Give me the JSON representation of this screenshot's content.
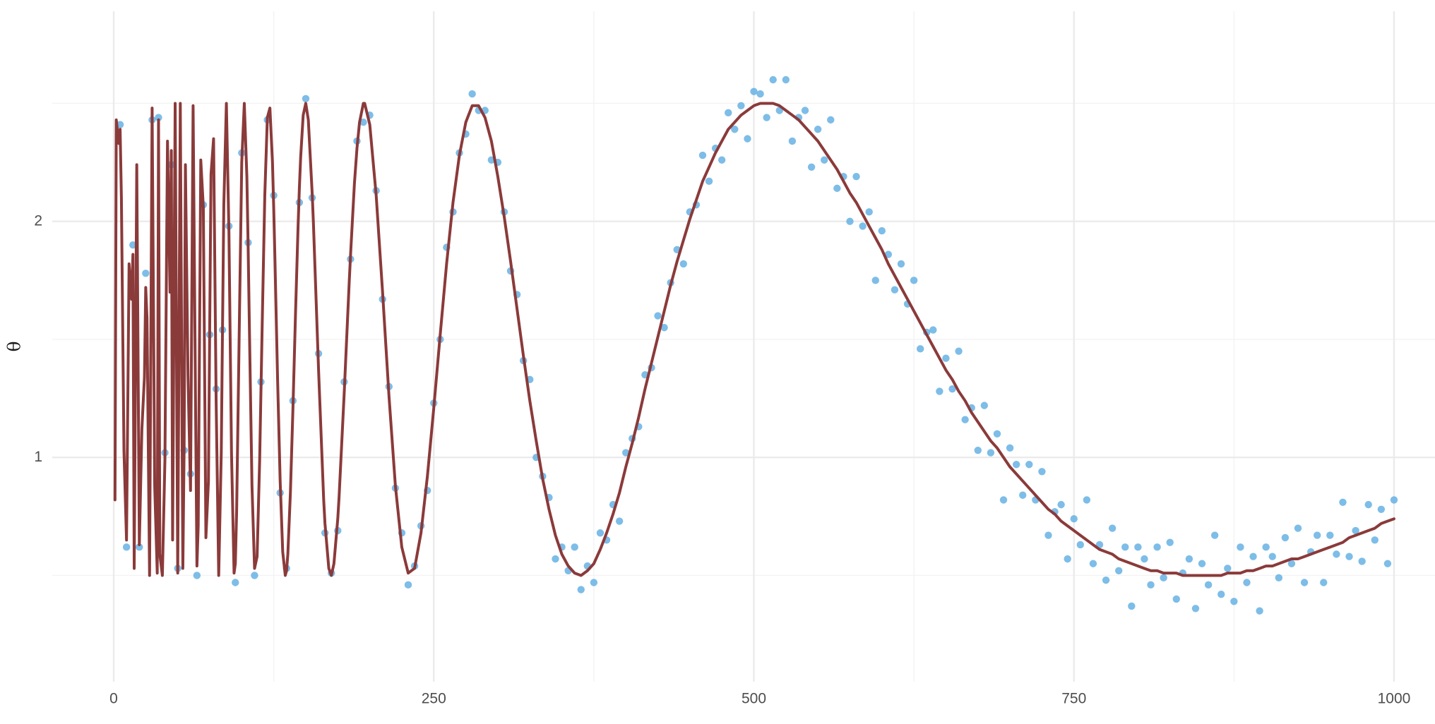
{
  "chart_data": {
    "type": "combo",
    "y_label": "θ",
    "xlim": [
      -48,
      1032
    ],
    "ylim": [
      0.05,
      2.89
    ],
    "xticks": [
      0,
      250,
      500,
      750,
      1000
    ],
    "xminor": [
      125,
      375,
      625,
      875
    ],
    "yticks": [
      1,
      2
    ],
    "yminor": [
      0.5,
      1.5,
      2.5
    ],
    "grid": true,
    "series": [
      {
        "type": "scatter",
        "color": "#5DADE2",
        "x": [
          5,
          10,
          15,
          20,
          25,
          30,
          35,
          40,
          45,
          50,
          55,
          60,
          65,
          70,
          75,
          80,
          85,
          90,
          95,
          100,
          105,
          110,
          115,
          120,
          125,
          130,
          135,
          140,
          145,
          150,
          155,
          160,
          165,
          170,
          175,
          180,
          185,
          190,
          195,
          200,
          205,
          210,
          215,
          220,
          225,
          230,
          235,
          240,
          245,
          250,
          255,
          260,
          265,
          270,
          275,
          280,
          285,
          290,
          295,
          300,
          305,
          310,
          315,
          320,
          325,
          330,
          335,
          340,
          345,
          350,
          355,
          360,
          365,
          370,
          375,
          380,
          385,
          390,
          395,
          400,
          405,
          410,
          415,
          420,
          425,
          430,
          435,
          440,
          445,
          450,
          455,
          460,
          465,
          470,
          475,
          480,
          485,
          490,
          495,
          500,
          505,
          510,
          515,
          520,
          525,
          530,
          535,
          540,
          545,
          550,
          555,
          560,
          565,
          570,
          575,
          580,
          585,
          590,
          595,
          600,
          605,
          610,
          615,
          620,
          625,
          630,
          635,
          640,
          645,
          650,
          655,
          660,
          665,
          670,
          675,
          680,
          685,
          690,
          695,
          700,
          705,
          710,
          715,
          720,
          725,
          730,
          735,
          740,
          745,
          750,
          755,
          760,
          765,
          770,
          775,
          780,
          785,
          790,
          795,
          800,
          805,
          810,
          815,
          820,
          825,
          830,
          835,
          840,
          845,
          850,
          855,
          860,
          865,
          870,
          875,
          880,
          885,
          890,
          895,
          900,
          905,
          910,
          915,
          920,
          925,
          930,
          935,
          940,
          945,
          950,
          955,
          960,
          965,
          970,
          975,
          980,
          985,
          990,
          995,
          1000
        ],
        "values": [
          2.41,
          0.62,
          1.9,
          0.62,
          1.78,
          2.43,
          2.44,
          1.02,
          2.24,
          0.53,
          1.03,
          0.93,
          0.5,
          2.07,
          1.52,
          1.29,
          1.54,
          1.98,
          0.47,
          2.29,
          1.91,
          0.5,
          1.32,
          2.43,
          2.11,
          0.85,
          0.53,
          1.24,
          2.08,
          2.52,
          2.1,
          1.44,
          0.68,
          0.51,
          0.69,
          1.32,
          1.84,
          2.34,
          2.42,
          2.45,
          2.13,
          1.67,
          1.3,
          0.87,
          0.68,
          0.46,
          0.54,
          0.71,
          0.86,
          1.23,
          1.5,
          1.89,
          2.04,
          2.29,
          2.37,
          2.54,
          2.47,
          2.47,
          2.26,
          2.25,
          2.04,
          1.79,
          1.69,
          1.41,
          1.33,
          1.0,
          0.92,
          0.83,
          0.57,
          0.62,
          0.52,
          0.62,
          0.44,
          0.54,
          0.47,
          0.68,
          0.65,
          0.8,
          0.73,
          1.02,
          1.08,
          1.13,
          1.35,
          1.38,
          1.6,
          1.55,
          1.74,
          1.88,
          1.82,
          2.04,
          2.07,
          2.28,
          2.17,
          2.31,
          2.26,
          2.46,
          2.39,
          2.49,
          2.35,
          2.55,
          2.54,
          2.44,
          2.6,
          2.47,
          2.6,
          2.34,
          2.44,
          2.47,
          2.23,
          2.39,
          2.26,
          2.43,
          2.14,
          2.19,
          2.0,
          2.19,
          1.98,
          2.04,
          1.75,
          1.96,
          1.86,
          1.71,
          1.82,
          1.65,
          1.75,
          1.46,
          1.53,
          1.54,
          1.28,
          1.42,
          1.29,
          1.45,
          1.16,
          1.21,
          1.03,
          1.22,
          1.02,
          1.1,
          0.82,
          1.04,
          0.97,
          0.84,
          0.97,
          0.82,
          0.94,
          0.67,
          0.77,
          0.8,
          0.57,
          0.74,
          0.63,
          0.82,
          0.55,
          0.63,
          0.48,
          0.7,
          0.52,
          0.62,
          0.37,
          0.62,
          0.57,
          0.46,
          0.62,
          0.49,
          0.64,
          0.4,
          0.51,
          0.57,
          0.36,
          0.55,
          0.46,
          0.67,
          0.42,
          0.53,
          0.39,
          0.62,
          0.47,
          0.58,
          0.35,
          0.62,
          0.58,
          0.49,
          0.66,
          0.55,
          0.7,
          0.47,
          0.6,
          0.67,
          0.47,
          0.67,
          0.59,
          0.81,
          0.58,
          0.69,
          0.56,
          0.8,
          0.65,
          0.78,
          0.55,
          0.82
        ]
      },
      {
        "type": "line",
        "color": "#8B3A3A",
        "x": [
          1,
          2,
          4,
          5,
          6,
          8,
          10,
          12,
          14,
          15,
          16,
          18,
          20,
          22,
          24,
          25,
          26,
          28,
          30,
          32,
          34,
          35,
          36,
          38,
          40,
          42,
          44,
          45,
          46,
          48,
          50,
          52,
          54,
          55,
          56,
          58,
          60,
          62,
          64,
          65,
          66,
          68,
          70,
          72,
          74,
          75,
          76,
          78,
          80,
          82,
          84,
          85,
          86,
          88,
          90,
          92,
          94,
          95,
          96,
          98,
          100,
          102,
          104,
          105,
          106,
          108,
          110,
          112,
          114,
          115,
          116,
          118,
          120,
          122,
          124,
          125,
          126,
          128,
          130,
          132,
          134,
          135,
          136,
          138,
          140,
          142,
          144,
          145,
          146,
          148,
          150,
          152,
          155,
          156,
          160,
          164,
          165,
          168,
          170,
          172,
          175,
          176,
          180,
          184,
          185,
          188,
          190,
          192,
          195,
          196,
          200,
          205,
          210,
          215,
          220,
          225,
          230,
          235,
          240,
          245,
          250,
          255,
          260,
          265,
          270,
          275,
          280,
          285,
          290,
          295,
          300,
          305,
          310,
          315,
          320,
          325,
          330,
          335,
          340,
          345,
          350,
          355,
          360,
          365,
          370,
          375,
          380,
          385,
          390,
          395,
          400,
          405,
          410,
          415,
          420,
          425,
          430,
          435,
          440,
          445,
          450,
          455,
          460,
          465,
          470,
          475,
          480,
          485,
          490,
          495,
          500,
          505,
          510,
          515,
          520,
          525,
          530,
          535,
          540,
          545,
          550,
          555,
          560,
          565,
          570,
          575,
          580,
          585,
          590,
          595,
          600,
          605,
          610,
          615,
          620,
          625,
          630,
          635,
          640,
          645,
          650,
          655,
          660,
          665,
          670,
          675,
          680,
          685,
          690,
          695,
          700,
          705,
          710,
          715,
          720,
          725,
          730,
          735,
          740,
          745,
          750,
          755,
          760,
          765,
          770,
          775,
          780,
          785,
          790,
          795,
          800,
          805,
          810,
          815,
          820,
          825,
          830,
          835,
          840,
          845,
          850,
          855,
          860,
          865,
          870,
          875,
          880,
          885,
          890,
          895,
          900,
          905,
          910,
          915,
          920,
          925,
          930,
          935,
          940,
          945,
          950,
          955,
          960,
          965,
          970,
          975,
          980,
          985,
          990,
          995,
          1000
        ],
        "values": [
          0.82,
          2.43,
          2.33,
          2.39,
          2.1,
          1.03,
          0.65,
          1.82,
          1.67,
          1.86,
          0.53,
          2.24,
          0.63,
          1.12,
          1.34,
          1.72,
          1.59,
          0.5,
          2.48,
          0.88,
          0.51,
          2.43,
          0.59,
          0.5,
          0.99,
          2.34,
          1.7,
          2.3,
          0.65,
          2.5,
          0.51,
          2.5,
          0.53,
          1.05,
          2.24,
          1.35,
          0.86,
          2.49,
          1.17,
          0.54,
          0.71,
          2.26,
          2.06,
          0.66,
          0.9,
          1.57,
          2.2,
          2.35,
          1.24,
          0.5,
          1.02,
          1.56,
          2.07,
          2.5,
          1.95,
          1.02,
          0.51,
          0.55,
          0.77,
          1.52,
          2.25,
          2.5,
          2.19,
          1.89,
          1.54,
          0.88,
          0.53,
          0.58,
          0.99,
          1.28,
          1.57,
          2.11,
          2.44,
          2.48,
          2.25,
          2.05,
          1.82,
          1.33,
          0.9,
          0.6,
          0.5,
          0.52,
          0.59,
          0.85,
          1.21,
          1.61,
          1.98,
          2.14,
          2.27,
          2.45,
          2.5,
          2.43,
          2.12,
          1.99,
          1.37,
          0.82,
          0.72,
          0.53,
          0.5,
          0.55,
          0.74,
          0.83,
          1.27,
          1.75,
          1.86,
          2.16,
          2.31,
          2.42,
          2.5,
          2.5,
          2.41,
          2.11,
          1.7,
          1.26,
          0.88,
          0.62,
          0.51,
          0.53,
          0.68,
          0.92,
          1.21,
          1.52,
          1.82,
          2.08,
          2.28,
          2.42,
          2.49,
          2.49,
          2.44,
          2.34,
          2.19,
          2.02,
          1.83,
          1.63,
          1.43,
          1.24,
          1.07,
          0.91,
          0.78,
          0.67,
          0.59,
          0.54,
          0.51,
          0.5,
          0.52,
          0.55,
          0.61,
          0.68,
          0.76,
          0.85,
          0.96,
          1.06,
          1.17,
          1.29,
          1.4,
          1.51,
          1.62,
          1.73,
          1.83,
          1.92,
          2.01,
          2.09,
          2.17,
          2.23,
          2.29,
          2.34,
          2.39,
          2.42,
          2.45,
          2.47,
          2.49,
          2.5,
          2.5,
          2.5,
          2.49,
          2.47,
          2.45,
          2.43,
          2.4,
          2.37,
          2.34,
          2.3,
          2.26,
          2.22,
          2.17,
          2.12,
          2.08,
          2.03,
          1.98,
          1.93,
          1.88,
          1.82,
          1.77,
          1.72,
          1.67,
          1.62,
          1.57,
          1.52,
          1.47,
          1.42,
          1.37,
          1.33,
          1.28,
          1.24,
          1.19,
          1.15,
          1.11,
          1.07,
          1.04,
          1.0,
          0.96,
          0.93,
          0.9,
          0.87,
          0.84,
          0.81,
          0.78,
          0.76,
          0.73,
          0.71,
          0.69,
          0.67,
          0.65,
          0.63,
          0.61,
          0.6,
          0.59,
          0.57,
          0.56,
          0.55,
          0.54,
          0.53,
          0.52,
          0.52,
          0.51,
          0.51,
          0.51,
          0.5,
          0.5,
          0.5,
          0.5,
          0.5,
          0.5,
          0.5,
          0.51,
          0.51,
          0.51,
          0.52,
          0.52,
          0.53,
          0.54,
          0.54,
          0.55,
          0.56,
          0.57,
          0.57,
          0.58,
          0.59,
          0.6,
          0.61,
          0.62,
          0.63,
          0.64,
          0.66,
          0.67,
          0.68,
          0.69,
          0.7,
          0.72,
          0.73,
          0.74
        ]
      }
    ]
  }
}
